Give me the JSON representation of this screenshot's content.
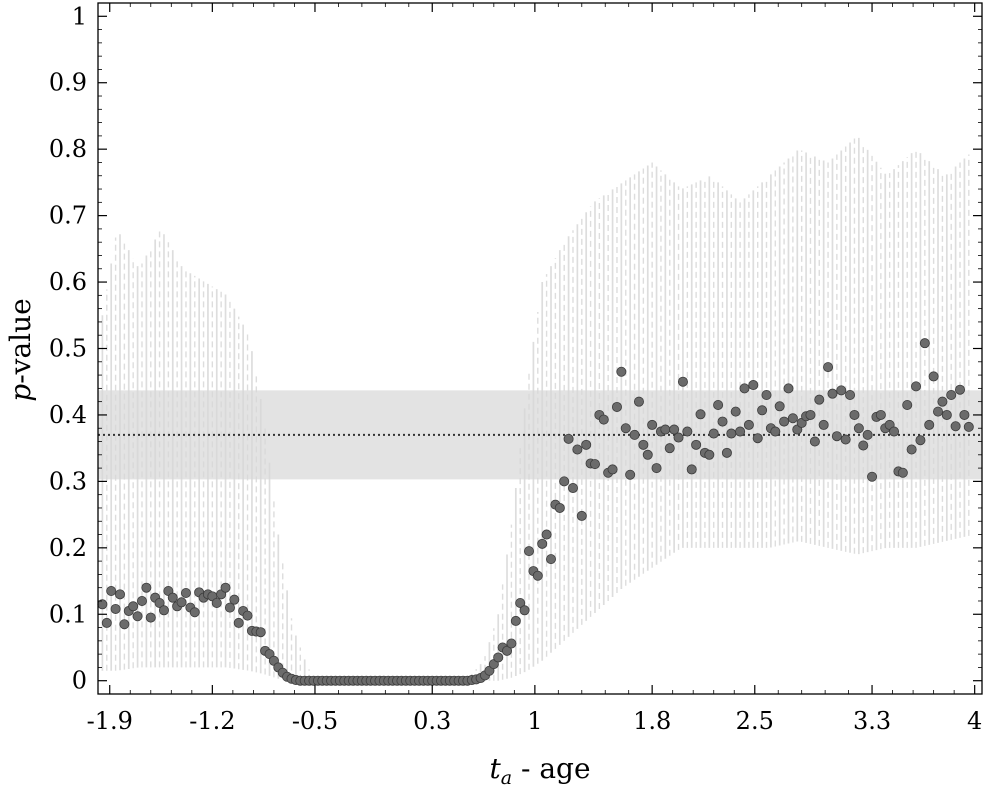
{
  "chart_data": {
    "type": "scatter",
    "title": "",
    "xlabel": {
      "italic": "t",
      "subscript": "a",
      "rest": " - age"
    },
    "ylabel": {
      "italic": "p",
      "rest": "-value"
    },
    "xlim": [
      -1.98,
      4.05
    ],
    "ylim": [
      -0.02,
      1.02
    ],
    "x_ticks": [
      -1.9,
      -1.2,
      -0.5,
      0.3,
      1,
      1.8,
      2.5,
      3.3,
      4
    ],
    "x_tick_labels": [
      "-1.9",
      "-1.2",
      "-0.5",
      "0.3",
      "1",
      "1.8",
      "2.5",
      "3.3",
      "4"
    ],
    "y_ticks": [
      0,
      0.1,
      0.2,
      0.3,
      0.4,
      0.5,
      0.6,
      0.7,
      0.8,
      0.9,
      1
    ],
    "y_tick_labels": [
      "0",
      "0.1",
      "0.2",
      "0.3",
      "0.4",
      "0.5",
      "0.6",
      "0.7",
      "0.8",
      "0.9",
      "1"
    ],
    "grid": false,
    "reference_line": {
      "y": 0.37,
      "style": "dotted"
    },
    "reference_band": {
      "y_min": 0.303,
      "y_max": 0.437
    },
    "colors": {
      "points": "#6b6b6b",
      "point_edge": "#3c3c3c",
      "band": "#e3e3e3",
      "error_bars": "#d8d8d8",
      "reference_line": "#333333"
    },
    "x_start": -1.95,
    "x_step": 0.03,
    "points": [
      0.115,
      0.087,
      0.135,
      0.108,
      0.13,
      0.085,
      0.105,
      0.112,
      0.097,
      0.12,
      0.14,
      0.095,
      0.125,
      0.117,
      0.106,
      0.135,
      0.125,
      0.112,
      0.118,
      0.132,
      0.11,
      0.103,
      0.133,
      0.125,
      0.13,
      0.127,
      0.117,
      0.13,
      0.14,
      0.11,
      0.122,
      0.087,
      0.105,
      0.098,
      0.075,
      0.074,
      0.073,
      0.045,
      0.04,
      0.03,
      0.02,
      0.012,
      0.006,
      0.003,
      0.001,
      0,
      0,
      0,
      0,
      0,
      0,
      0,
      0,
      0,
      0,
      0,
      0,
      0,
      0,
      0,
      0,
      0,
      0,
      0,
      0,
      0,
      0,
      0,
      0,
      0,
      0,
      0,
      0,
      0,
      0,
      0,
      0,
      0,
      0,
      0,
      0,
      0,
      0,
      0,
      0.001,
      0.002,
      0.004,
      0.008,
      0.015,
      0.025,
      0.035,
      0.05,
      0.045,
      0.056,
      0.09,
      0.117,
      0.106,
      0.195,
      0.165,
      0.158,
      0.206,
      0.22,
      0.183,
      0.265,
      0.26,
      0.3,
      0.364,
      0.29,
      0.348,
      0.248,
      0.355,
      0.327,
      0.326,
      0.4,
      0.393,
      0.313,
      0.318,
      0.412,
      0.465,
      0.38,
      0.31,
      0.37,
      0.42,
      0.355,
      0.34,
      0.385,
      0.32,
      0.375,
      0.378,
      0.35,
      0.378,
      0.366,
      0.45,
      0.375,
      0.318,
      0.355,
      0.401,
      0.343,
      0.34,
      0.372,
      0.415,
      0.39,
      0.343,
      0.372,
      0.405,
      0.375,
      0.44,
      0.385,
      0.445,
      0.365,
      0.407,
      0.43,
      0.38,
      0.375,
      0.413,
      0.39,
      0.44,
      0.395,
      0.378,
      0.388,
      0.398,
      0.4,
      0.36,
      0.423,
      0.385,
      0.472,
      0.432,
      0.368,
      0.437,
      0.363,
      0.43,
      0.4,
      0.38,
      0.354,
      0.37,
      0.307,
      0.397,
      0.4,
      0.38,
      0.385,
      0.375,
      0.315,
      0.313,
      0.415,
      0.348,
      0.443,
      0.362,
      0.508,
      0.385,
      0.458,
      0.405,
      0.42,
      0.4,
      0.43,
      0.383,
      0.438,
      0.4,
      0.382
    ],
    "error_bar_envelope": [
      {
        "x": -1.95,
        "lo": 0.015,
        "hi": 0.55
      },
      {
        "x": -1.85,
        "lo": 0.015,
        "hi": 0.68
      },
      {
        "x": -1.7,
        "lo": 0.02,
        "hi": 0.62
      },
      {
        "x": -1.55,
        "lo": 0.02,
        "hi": 0.68
      },
      {
        "x": -1.4,
        "lo": 0.02,
        "hi": 0.62
      },
      {
        "x": -1.25,
        "lo": 0.02,
        "hi": 0.6
      },
      {
        "x": -1.1,
        "lo": 0.02,
        "hi": 0.58
      },
      {
        "x": -0.95,
        "lo": 0.015,
        "hi": 0.52
      },
      {
        "x": -0.85,
        "lo": 0.01,
        "hi": 0.4
      },
      {
        "x": -0.75,
        "lo": 0.003,
        "hi": 0.22
      },
      {
        "x": -0.65,
        "lo": 0.0,
        "hi": 0.08
      },
      {
        "x": -0.55,
        "lo": 0.0,
        "hi": 0.02
      },
      {
        "x": -0.5,
        "lo": 0.0,
        "hi": 0.005
      },
      {
        "x": 0.55,
        "lo": 0.0,
        "hi": 0.005
      },
      {
        "x": 0.65,
        "lo": 0.0,
        "hi": 0.03
      },
      {
        "x": 0.75,
        "lo": 0.0,
        "hi": 0.1
      },
      {
        "x": 0.85,
        "lo": 0.005,
        "hi": 0.25
      },
      {
        "x": 0.95,
        "lo": 0.015,
        "hi": 0.45
      },
      {
        "x": 1.05,
        "lo": 0.03,
        "hi": 0.6
      },
      {
        "x": 1.2,
        "lo": 0.06,
        "hi": 0.66
      },
      {
        "x": 1.4,
        "lo": 0.1,
        "hi": 0.72
      },
      {
        "x": 1.6,
        "lo": 0.14,
        "hi": 0.75
      },
      {
        "x": 1.8,
        "lo": 0.17,
        "hi": 0.78
      },
      {
        "x": 2.0,
        "lo": 0.2,
        "hi": 0.74
      },
      {
        "x": 2.2,
        "lo": 0.2,
        "hi": 0.76
      },
      {
        "x": 2.4,
        "lo": 0.2,
        "hi": 0.72
      },
      {
        "x": 2.6,
        "lo": 0.2,
        "hi": 0.76
      },
      {
        "x": 2.8,
        "lo": 0.21,
        "hi": 0.8
      },
      {
        "x": 3.0,
        "lo": 0.2,
        "hi": 0.78
      },
      {
        "x": 3.2,
        "lo": 0.19,
        "hi": 0.82
      },
      {
        "x": 3.4,
        "lo": 0.2,
        "hi": 0.76
      },
      {
        "x": 3.6,
        "lo": 0.2,
        "hi": 0.8
      },
      {
        "x": 3.8,
        "lo": 0.21,
        "hi": 0.76
      },
      {
        "x": 4.0,
        "lo": 0.22,
        "hi": 0.8
      }
    ]
  }
}
